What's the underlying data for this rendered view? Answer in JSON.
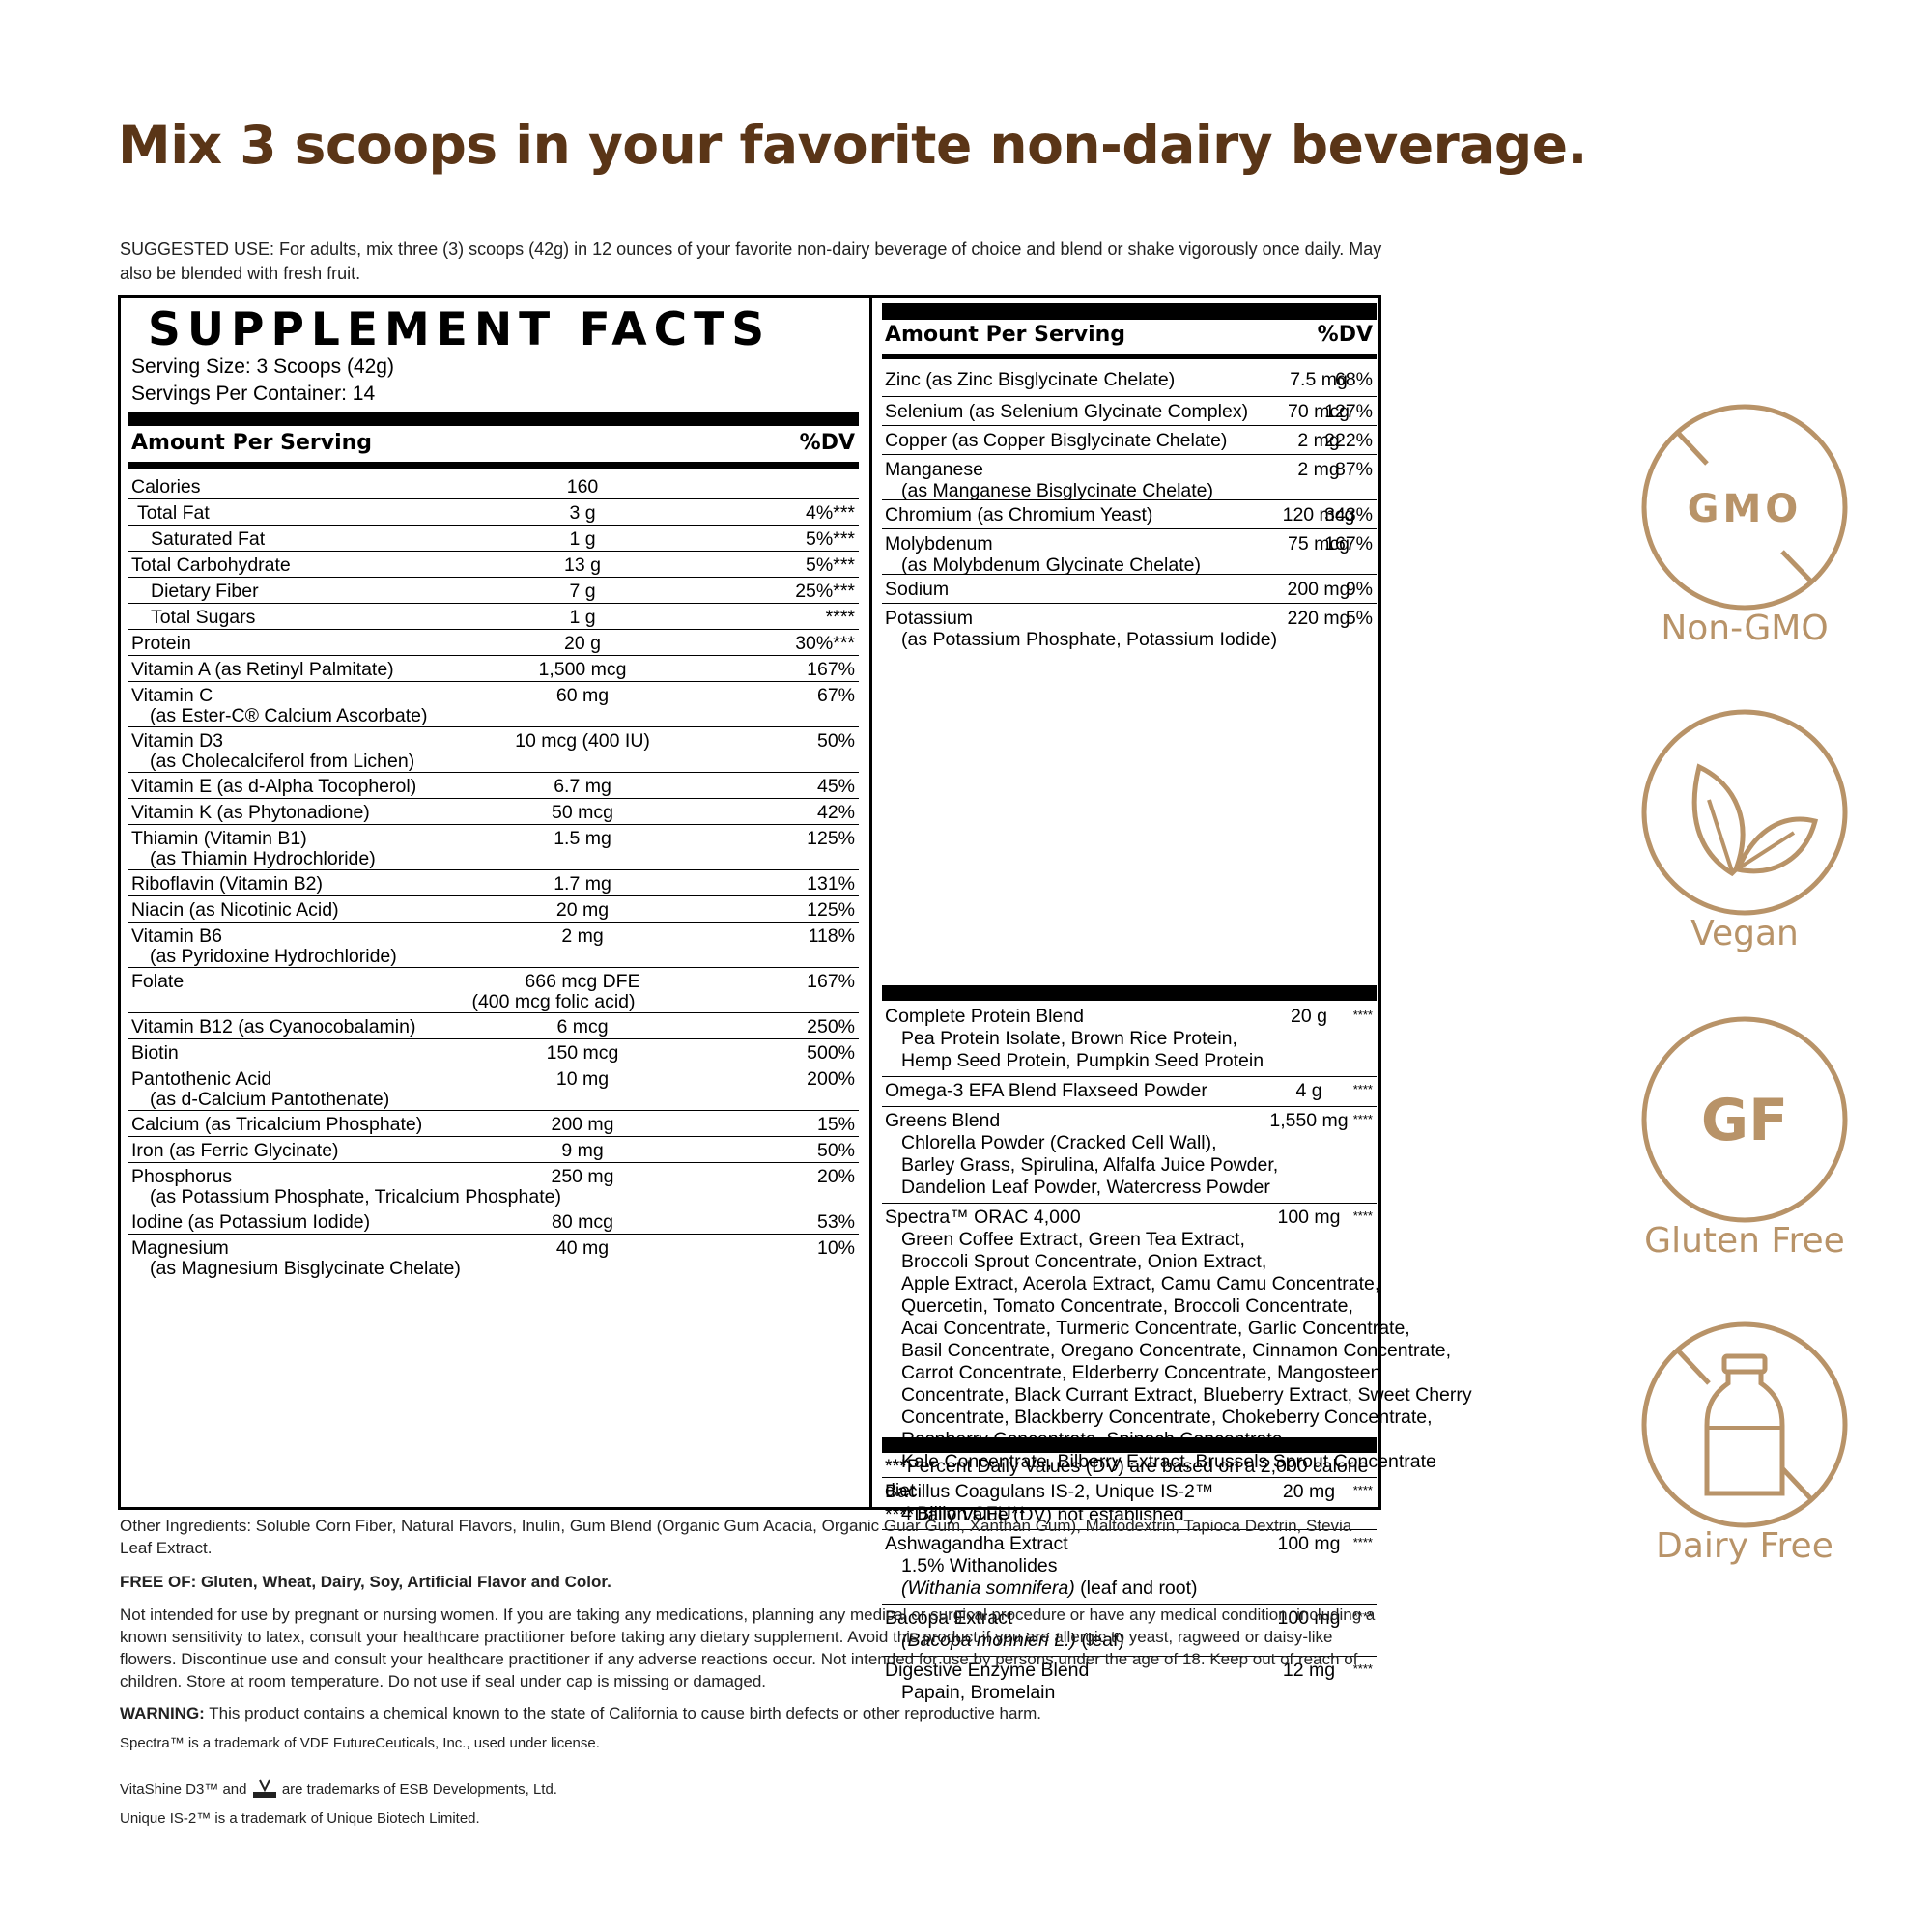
{
  "headline": "Mix 3 scoops in your favorite non-dairy beverage.",
  "suggested_use": "SUGGESTED USE: For adults, mix three (3) scoops (42g) in 12 ounces of your favorite non-dairy beverage of choice and blend or shake vigorously once daily. May also be blended with fresh fruit.",
  "facts": {
    "title": "SUPPLEMENT FACTS",
    "serving_size": "Serving Size: 3 Scoops (42g)",
    "servings_per_container": "Servings Per Container: 14",
    "amount_header": "Amount Per Serving",
    "dv_header": "%DV",
    "left_rows": [
      {
        "name": "Calories",
        "amount": "160",
        "dv": ""
      },
      {
        "name": "Total Fat",
        "amount": "3 g",
        "dv": "4%***"
      },
      {
        "name": "Saturated Fat",
        "amount": "1 g",
        "dv": "5%***"
      },
      {
        "name": "Total Carbohydrate",
        "amount": "13 g",
        "dv": "5%***"
      },
      {
        "name": "Dietary Fiber",
        "amount": "7 g",
        "dv": "25%***"
      },
      {
        "name": "Total Sugars",
        "amount": "1 g",
        "dv": "****"
      },
      {
        "name": "Protein",
        "amount": "20 g",
        "dv": "30%***"
      },
      {
        "name": "Vitamin A (as Retinyl Palmitate)",
        "amount": "1,500 mcg",
        "dv": "167%"
      },
      {
        "name": "Vitamin C",
        "amount": "60 mg",
        "dv": "67%",
        "sub": "(as Ester-C® Calcium Ascorbate)"
      },
      {
        "name": "Vitamin D3",
        "amount": "10 mcg (400 IU)",
        "dv": "50%",
        "sub": "(as Cholecalciferol from Lichen)"
      },
      {
        "name": "Vitamin E (as d-Alpha Tocopherol)",
        "amount": "6.7 mg",
        "dv": "45%"
      },
      {
        "name": "Vitamin K (as Phytonadione)",
        "amount": "50 mcg",
        "dv": "42%"
      },
      {
        "name": "Thiamin (Vitamin B1)",
        "amount": "1.5 mg",
        "dv": "125%",
        "sub": "(as Thiamin Hydrochloride)"
      },
      {
        "name": "Riboflavin (Vitamin B2)",
        "amount": "1.7 mg",
        "dv": "131%"
      },
      {
        "name": "Niacin (as Nicotinic Acid)",
        "amount": "20 mg",
        "dv": "125%"
      },
      {
        "name": "Vitamin B6",
        "amount": "2 mg",
        "dv": "118%",
        "sub": "(as Pyridoxine Hydrochloride)"
      },
      {
        "name": "Folate",
        "amount": "666 mcg DFE",
        "dv": "167%",
        "amount2": "(400 mcg folic acid)"
      },
      {
        "name": "Vitamin B12 (as Cyanocobalamin)",
        "amount": "6 mcg",
        "dv": "250%"
      },
      {
        "name": "Biotin",
        "amount": "150 mcg",
        "dv": "500%"
      },
      {
        "name": "Pantothenic Acid",
        "amount": "10 mg",
        "dv": "200%",
        "sub": "(as d-Calcium Pantothenate)"
      },
      {
        "name": "Calcium (as Tricalcium Phosphate)",
        "amount": "200 mg",
        "dv": "15%"
      },
      {
        "name": "Iron (as Ferric Glycinate)",
        "amount": "9 mg",
        "dv": "50%"
      },
      {
        "name": "Phosphorus",
        "amount": "250 mg",
        "dv": "20%",
        "sub": "(as Potassium Phosphate, Tricalcium Phosphate)"
      },
      {
        "name": "Iodine (as Potassium Iodide)",
        "amount": "80 mcg",
        "dv": "53%"
      },
      {
        "name": "Magnesium",
        "amount": "40 mg",
        "dv": "10%",
        "sub": "(as Magnesium Bisglycinate Chelate)"
      }
    ],
    "right_rows_a": [
      {
        "name": "Zinc (as Zinc Bisglycinate Chelate)",
        "amount": "7.5 mg",
        "dv": "68%"
      },
      {
        "name": "Selenium (as Selenium Glycinate Complex)",
        "amount": "70 mcg",
        "dv": "127%"
      },
      {
        "name": "Copper (as Copper Bisglycinate Chelate)",
        "amount": "2 mg",
        "dv": "222%"
      },
      {
        "name": "Manganese",
        "amount": "2 mg",
        "dv": "87%",
        "sub": "(as Manganese Bisglycinate Chelate)"
      },
      {
        "name": "Chromium (as Chromium Yeast)",
        "amount": "120 mcg",
        "dv": "343%"
      },
      {
        "name": "Molybdenum",
        "amount": "75 mcg",
        "dv": "167%",
        "sub": "(as Molybdenum Glycinate Chelate)"
      },
      {
        "name": "Sodium",
        "amount": "200 mg",
        "dv": "9%"
      },
      {
        "name": "Potassium",
        "amount": "220 mg",
        "dv": "5%",
        "sub": "(as Potassium Phosphate, Potassium Iodide)"
      }
    ],
    "right_rows_b": [
      {
        "name": "Complete Protein Blend",
        "amount": "20 g",
        "dv": "****",
        "lines": [
          "Pea Protein Isolate, Brown Rice Protein,",
          "Hemp Seed Protein, Pumpkin Seed Protein"
        ]
      },
      {
        "name": "Omega-3 EFA Blend Flaxseed Powder",
        "amount": "4 g",
        "dv": "****",
        "lines": []
      },
      {
        "name": "Greens Blend",
        "amount": "1,550 mg",
        "dv": "****",
        "lines": [
          "Chlorella Powder (Cracked Cell Wall),",
          "Barley Grass, Spirulina, Alfalfa Juice Powder,",
          "Dandelion Leaf Powder, Watercress Powder"
        ]
      },
      {
        "name": "Spectra™ ORAC 4,000",
        "amount": "100 mg",
        "dv": "****",
        "lines": [
          "Green Coffee Extract, Green Tea Extract,",
          "Broccoli Sprout Concentrate, Onion Extract,",
          "Apple Extract, Acerola Extract, Camu Camu Concentrate,",
          "Quercetin, Tomato Concentrate, Broccoli Concentrate,",
          "Acai Concentrate, Turmeric Concentrate, Garlic Concentrate,",
          "Basil Concentrate, Oregano Concentrate, Cinnamon Concentrate,",
          "Carrot Concentrate, Elderberry Concentrate, Mangosteen",
          "Concentrate, Black Currant Extract, Blueberry Extract, Sweet Cherry",
          "Concentrate, Blackberry Concentrate, Chokeberry Concentrate,",
          "Raspberry Concentrate, Spinach Concentrate,",
          "Kale Concentrate, Bilberry Extract, Brussels Sprout Concentrate"
        ]
      },
      {
        "name": "Bacillus Coagulans IS-2, Unique IS-2™",
        "amount": "20 mg",
        "dv": "****",
        "lines": [
          "4 Billion CFU**"
        ]
      },
      {
        "name": "Ashwagandha Extract",
        "amount": "100 mg",
        "dv": "****",
        "lines": [
          "1.5% Withanolides"
        ],
        "italic_line": "(Withania somnifera)",
        "italic_suffix": " (leaf and root)"
      },
      {
        "name": "Bacopa Extract",
        "amount": "100 mg",
        "dv": "****",
        "lines": [],
        "italic_line": "(Bacopa monnieri L.)",
        "italic_suffix": " (leaf)"
      },
      {
        "name": "Digestive Enzyme Blend",
        "amount": "12 mg",
        "dv": "****",
        "lines": [
          "Papain, Bromelain"
        ]
      }
    ],
    "footnote_1": "***Percent Daily Values (DV) are based on a 2,000 calorie diet",
    "footnote_2": "****Daily Value (DV) not established"
  },
  "other_ingredients": "Other Ingredients: Soluble Corn Fiber, Natural Flavors, Inulin, Gum Blend (Organic Gum Acacia, Organic Guar Gum, Xanthan Gum), Maltodextrin, Tapioca Dextrin, Stevia Leaf Extract.",
  "free_of": "FREE OF: Gluten, Wheat, Dairy, Soy, Artificial Flavor and Color.",
  "caution": "Not intended for use by pregnant or nursing women. If you are taking any medications, planning any medical or surgical procedure or have any medical condition, including a known sensitivity to latex, consult your healthcare practitioner before taking any dietary supplement. Avoid this product if you are allergic to yeast, ragweed or daisy-like flowers. Discontinue use and consult your healthcare practitioner if any adverse reactions occur. Not intended for use by persons under the age of 18. Keep out of reach of children. Store at room temperature. Do not use if seal under cap is missing or damaged.",
  "warning_label": "WARNING:",
  "warning_text": " This product contains a chemical known to the state of California to cause birth defects or other reproductive harm.",
  "trademark_1": "Spectra™ is a trademark of VDF FutureCeuticals, Inc., used under license.",
  "trademark_2a": "VitaShine D3™ and",
  "trademark_2b": "are trademarks of ESB Developments, Ltd.",
  "trademark_3": "Unique IS-2™ is a trademark of Unique Biotech Limited.",
  "badges": [
    {
      "label": "Non-GMO",
      "icon": "no-gmo-icon",
      "text": "GMO"
    },
    {
      "label": "Vegan",
      "icon": "leaf-icon",
      "text": ""
    },
    {
      "label": "Gluten Free",
      "icon": "gluten-free-icon",
      "text": "GF"
    },
    {
      "label": "Dairy Free",
      "icon": "no-milk-bottle-icon",
      "text": ""
    }
  ],
  "colors": {
    "headline": "#5a3517",
    "badge": "#b89368"
  }
}
